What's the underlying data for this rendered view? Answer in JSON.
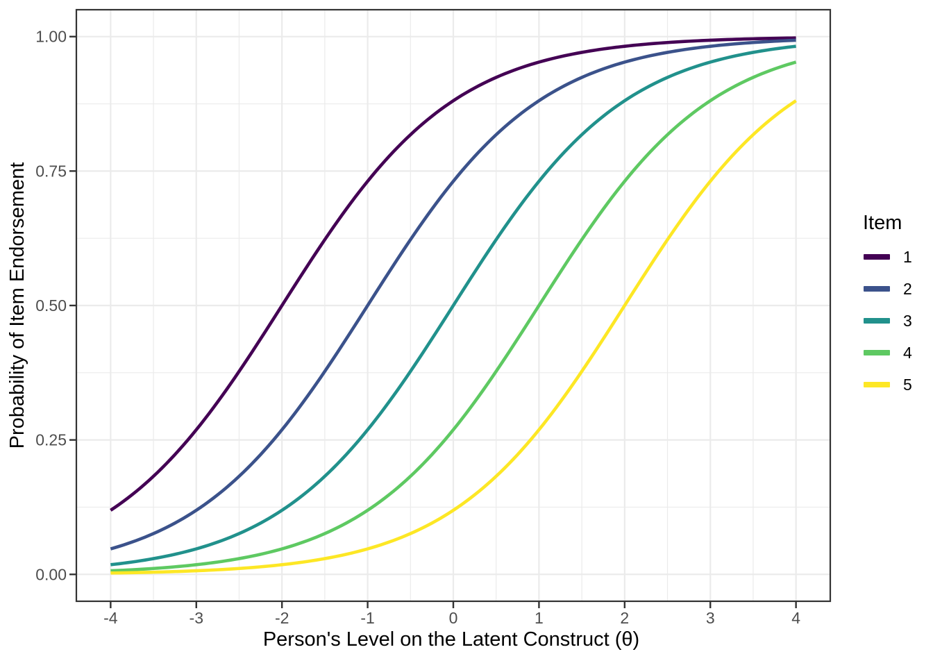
{
  "chart_data": {
    "type": "line",
    "title": "",
    "xlabel": "Person's Level on the Latent Construct (θ)",
    "ylabel": "Probability of Item Endorsement",
    "xlim": [
      -4.4,
      4.4
    ],
    "ylim": [
      -0.05,
      1.05
    ],
    "x_ticks": [
      -4,
      -3,
      -2,
      -1,
      0,
      1,
      2,
      3,
      4
    ],
    "x_tick_labels": [
      "-4",
      "-3",
      "-2",
      "-1",
      "0",
      "1",
      "2",
      "3",
      "4"
    ],
    "y_ticks": [
      0,
      0.25,
      0.5,
      0.75,
      1
    ],
    "y_tick_labels": [
      "0.00",
      "0.25",
      "0.50",
      "0.75",
      "1.00"
    ],
    "x_minor_gridlines": [
      -3.5,
      -2.5,
      -1.5,
      -0.5,
      0.5,
      1.5,
      2.5,
      3.5
    ],
    "y_minor_gridlines": [
      0.125,
      0.375,
      0.625,
      0.875
    ],
    "grid": "major and minor, light gray on white panel",
    "legend": {
      "title": "Item",
      "position": "right",
      "labels": [
        "1",
        "2",
        "3",
        "4",
        "5"
      ]
    },
    "sample_x": [
      -4,
      -3.5,
      -3,
      -2.5,
      -2,
      -1.5,
      -1,
      -0.5,
      0,
      0.5,
      1,
      1.5,
      2,
      2.5,
      3,
      3.5,
      4
    ],
    "series": [
      {
        "name": "1",
        "color": "#440154",
        "difficulty_b": -2,
        "values": [
          0.1192,
          0.1824,
          0.2689,
          0.3775,
          0.5,
          0.6225,
          0.7311,
          0.8176,
          0.8808,
          0.9241,
          0.9526,
          0.9707,
          0.982,
          0.989,
          0.9933,
          0.9959,
          0.9975
        ]
      },
      {
        "name": "2",
        "color": "#3B528B",
        "difficulty_b": -1,
        "values": [
          0.0474,
          0.0759,
          0.1192,
          0.1824,
          0.2689,
          0.3775,
          0.5,
          0.6225,
          0.7311,
          0.8176,
          0.8808,
          0.9241,
          0.9526,
          0.9707,
          0.982,
          0.989,
          0.9933
        ]
      },
      {
        "name": "3",
        "color": "#21918C",
        "difficulty_b": 0,
        "values": [
          0.018,
          0.0293,
          0.0474,
          0.0759,
          0.1192,
          0.1824,
          0.2689,
          0.3775,
          0.5,
          0.6225,
          0.7311,
          0.8176,
          0.8808,
          0.9241,
          0.9526,
          0.9707,
          0.982
        ]
      },
      {
        "name": "4",
        "color": "#5EC962",
        "difficulty_b": 1,
        "values": [
          0.0067,
          0.011,
          0.018,
          0.0293,
          0.0474,
          0.0759,
          0.1192,
          0.1824,
          0.2689,
          0.3775,
          0.5,
          0.6225,
          0.7311,
          0.8176,
          0.8808,
          0.9241,
          0.9526
        ]
      },
      {
        "name": "5",
        "color": "#FDE725",
        "difficulty_b": 2,
        "values": [
          0.0025,
          0.0041,
          0.0067,
          0.011,
          0.018,
          0.0293,
          0.0474,
          0.0759,
          0.1192,
          0.1824,
          0.2689,
          0.3775,
          0.5,
          0.6225,
          0.7311,
          0.8176,
          0.8808
        ]
      }
    ]
  },
  "styles": {
    "background": "#FFFFFF",
    "grid_color": "#EBEBEB",
    "panel_border_color": "#333333",
    "axis_tick_color": "#333333",
    "tick_label_color": "#4D4D4D",
    "axis_title_color": "#000000",
    "legend_text_color": "#000000",
    "curve_line_width": 4.6
  }
}
